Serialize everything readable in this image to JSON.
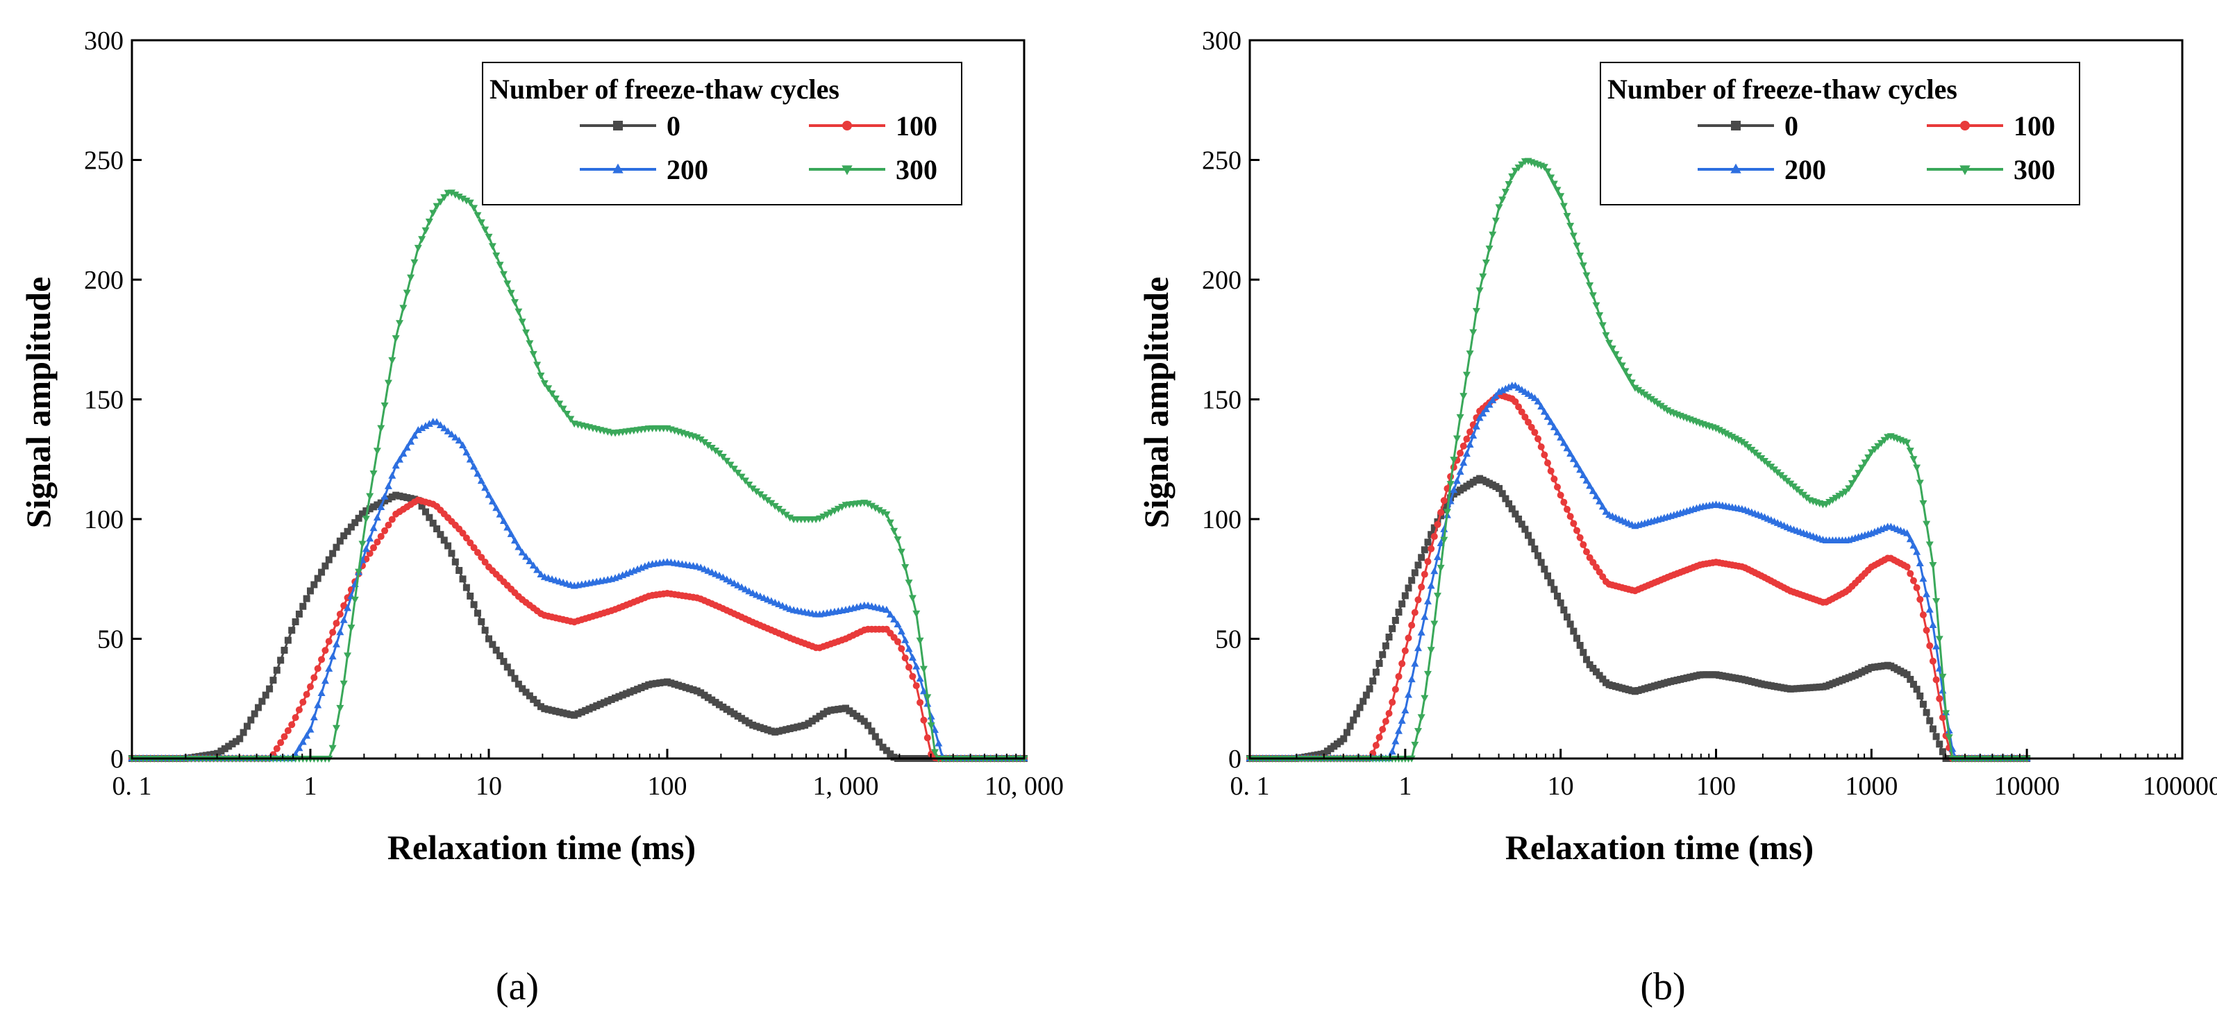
{
  "chart_data": [
    {
      "panel_label": "(a)",
      "type": "line",
      "xscale": "log",
      "xlim": [
        0.1,
        10000
      ],
      "ylim": [
        0,
        300
      ],
      "xticks": [
        0.1,
        1,
        10,
        100,
        1000,
        10000
      ],
      "xtick_labels": [
        "0. 1",
        "1",
        "10",
        "100",
        "1, 000",
        "10, 000"
      ],
      "yticks": [
        0,
        50,
        100,
        150,
        200,
        250,
        300
      ],
      "ytick_labels": [
        "0",
        "50",
        "100",
        "150",
        "200",
        "250",
        "300"
      ],
      "xlabel": "Relaxation time (ms)",
      "ylabel": "Signal amplitude",
      "legend_title": "Number of freeze-thaw cycles",
      "legend_position": "top-right",
      "series": [
        {
          "name": "0",
          "color": "#4a4a4a",
          "marker": "square",
          "points": [
            [
              0.1,
              0
            ],
            [
              0.2,
              0
            ],
            [
              0.3,
              2
            ],
            [
              0.4,
              8
            ],
            [
              0.6,
              30
            ],
            [
              0.8,
              55
            ],
            [
              1,
              70
            ],
            [
              1.5,
              92
            ],
            [
              2,
              103
            ],
            [
              3,
              110
            ],
            [
              4,
              108
            ],
            [
              6,
              88
            ],
            [
              10,
              50
            ],
            [
              15,
              30
            ],
            [
              20,
              21
            ],
            [
              30,
              18
            ],
            [
              50,
              25
            ],
            [
              80,
              31
            ],
            [
              100,
              32
            ],
            [
              150,
              28
            ],
            [
              200,
              22
            ],
            [
              300,
              14
            ],
            [
              400,
              11
            ],
            [
              600,
              14
            ],
            [
              800,
              20
            ],
            [
              1000,
              21
            ],
            [
              1300,
              15
            ],
            [
              1600,
              5
            ],
            [
              1900,
              0
            ],
            [
              10000,
              0
            ]
          ]
        },
        {
          "name": "100",
          "color": "#e83a3a",
          "marker": "circle",
          "points": [
            [
              0.1,
              0
            ],
            [
              0.6,
              0
            ],
            [
              0.8,
              15
            ],
            [
              1,
              30
            ],
            [
              1.5,
              62
            ],
            [
              2,
              82
            ],
            [
              3,
              102
            ],
            [
              4,
              108
            ],
            [
              5,
              106
            ],
            [
              7,
              95
            ],
            [
              10,
              80
            ],
            [
              15,
              67
            ],
            [
              20,
              60
            ],
            [
              30,
              57
            ],
            [
              50,
              62
            ],
            [
              80,
              68
            ],
            [
              100,
              69
            ],
            [
              150,
              67
            ],
            [
              200,
              63
            ],
            [
              300,
              57
            ],
            [
              500,
              50
            ],
            [
              700,
              46
            ],
            [
              1000,
              50
            ],
            [
              1300,
              54
            ],
            [
              1700,
              54
            ],
            [
              2000,
              48
            ],
            [
              2500,
              30
            ],
            [
              3000,
              2
            ],
            [
              3200,
              0
            ],
            [
              10000,
              0
            ]
          ]
        },
        {
          "name": "200",
          "color": "#2d6fe0",
          "marker": "triangle-up",
          "points": [
            [
              0.1,
              0
            ],
            [
              0.8,
              0
            ],
            [
              1,
              12
            ],
            [
              1.5,
              55
            ],
            [
              2,
              85
            ],
            [
              3,
              122
            ],
            [
              4,
              137
            ],
            [
              5,
              141
            ],
            [
              7,
              132
            ],
            [
              10,
              110
            ],
            [
              15,
              87
            ],
            [
              20,
              76
            ],
            [
              30,
              72
            ],
            [
              50,
              75
            ],
            [
              80,
              81
            ],
            [
              100,
              82
            ],
            [
              150,
              80
            ],
            [
              200,
              76
            ],
            [
              300,
              69
            ],
            [
              500,
              62
            ],
            [
              700,
              60
            ],
            [
              1000,
              62
            ],
            [
              1300,
              64
            ],
            [
              1700,
              62
            ],
            [
              2000,
              55
            ],
            [
              2500,
              38
            ],
            [
              3000,
              18
            ],
            [
              3500,
              0
            ],
            [
              10000,
              0
            ]
          ]
        },
        {
          "name": "300",
          "color": "#3aa85a",
          "marker": "triangle-down",
          "points": [
            [
              0.1,
              0
            ],
            [
              1.3,
              0
            ],
            [
              1.5,
              25
            ],
            [
              2,
              95
            ],
            [
              3,
              175
            ],
            [
              4,
              213
            ],
            [
              5,
              230
            ],
            [
              6,
              237
            ],
            [
              8,
              232
            ],
            [
              10,
              218
            ],
            [
              15,
              185
            ],
            [
              20,
              158
            ],
            [
              30,
              140
            ],
            [
              50,
              136
            ],
            [
              80,
              138
            ],
            [
              100,
              138
            ],
            [
              150,
              134
            ],
            [
              200,
              127
            ],
            [
              300,
              113
            ],
            [
              500,
              100
            ],
            [
              700,
              100
            ],
            [
              1000,
              106
            ],
            [
              1300,
              107
            ],
            [
              1700,
              102
            ],
            [
              2000,
              90
            ],
            [
              2500,
              60
            ],
            [
              3000,
              15
            ],
            [
              3200,
              0
            ],
            [
              10000,
              0
            ]
          ]
        }
      ]
    },
    {
      "panel_label": "(b)",
      "type": "line",
      "xscale": "log",
      "xlim": [
        0.1,
        100000
      ],
      "ylim": [
        0,
        300
      ],
      "xticks": [
        0.1,
        1,
        10,
        100,
        1000,
        10000,
        100000
      ],
      "xtick_labels": [
        "0. 1",
        "1",
        "10",
        "100",
        "1000",
        "10000",
        "100000"
      ],
      "yticks": [
        0,
        50,
        100,
        150,
        200,
        250,
        300
      ],
      "ytick_labels": [
        "0",
        "50",
        "100",
        "150",
        "200",
        "250",
        "300"
      ],
      "xlabel": "Relaxation time (ms)",
      "ylabel": "Signal amplitude",
      "legend_title": "Number of freeze-thaw cycles",
      "legend_position": "top-right",
      "series": [
        {
          "name": "0",
          "color": "#4a4a4a",
          "marker": "square",
          "points": [
            [
              0.1,
              0
            ],
            [
              0.2,
              0
            ],
            [
              0.3,
              2
            ],
            [
              0.4,
              8
            ],
            [
              0.6,
              30
            ],
            [
              0.8,
              52
            ],
            [
              1,
              68
            ],
            [
              1.5,
              95
            ],
            [
              2,
              110
            ],
            [
              3,
              117
            ],
            [
              4,
              113
            ],
            [
              6,
              95
            ],
            [
              10,
              65
            ],
            [
              15,
              40
            ],
            [
              20,
              31
            ],
            [
              30,
              28
            ],
            [
              50,
              32
            ],
            [
              80,
              35
            ],
            [
              100,
              35
            ],
            [
              150,
              33
            ],
            [
              200,
              31
            ],
            [
              300,
              29
            ],
            [
              500,
              30
            ],
            [
              800,
              35
            ],
            [
              1000,
              38
            ],
            [
              1300,
              39
            ],
            [
              1700,
              35
            ],
            [
              2000,
              28
            ],
            [
              2500,
              12
            ],
            [
              3000,
              0
            ],
            [
              10000,
              0
            ]
          ]
        },
        {
          "name": "100",
          "color": "#e83a3a",
          "marker": "circle",
          "points": [
            [
              0.1,
              0
            ],
            [
              0.6,
              0
            ],
            [
              0.8,
              20
            ],
            [
              1,
              45
            ],
            [
              1.5,
              90
            ],
            [
              2,
              120
            ],
            [
              3,
              145
            ],
            [
              4,
              152
            ],
            [
              5,
              150
            ],
            [
              7,
              135
            ],
            [
              10,
              110
            ],
            [
              15,
              85
            ],
            [
              20,
              73
            ],
            [
              30,
              70
            ],
            [
              50,
              76
            ],
            [
              80,
              81
            ],
            [
              100,
              82
            ],
            [
              150,
              80
            ],
            [
              200,
              76
            ],
            [
              300,
              70
            ],
            [
              500,
              65
            ],
            [
              700,
              70
            ],
            [
              1000,
              80
            ],
            [
              1300,
              84
            ],
            [
              1700,
              80
            ],
            [
              2000,
              70
            ],
            [
              2500,
              40
            ],
            [
              3000,
              10
            ],
            [
              3300,
              0
            ],
            [
              10000,
              0
            ]
          ]
        },
        {
          "name": "200",
          "color": "#2d6fe0",
          "marker": "triangle-up",
          "points": [
            [
              0.1,
              0
            ],
            [
              0.8,
              0
            ],
            [
              1,
              20
            ],
            [
              1.5,
              75
            ],
            [
              2,
              110
            ],
            [
              3,
              142
            ],
            [
              4,
              153
            ],
            [
              5,
              156
            ],
            [
              7,
              150
            ],
            [
              10,
              134
            ],
            [
              15,
              115
            ],
            [
              20,
              102
            ],
            [
              30,
              97
            ],
            [
              50,
              101
            ],
            [
              80,
              105
            ],
            [
              100,
              106
            ],
            [
              150,
              104
            ],
            [
              200,
              101
            ],
            [
              300,
              96
            ],
            [
              500,
              91
            ],
            [
              700,
              91
            ],
            [
              1000,
              94
            ],
            [
              1300,
              97
            ],
            [
              1700,
              94
            ],
            [
              2000,
              85
            ],
            [
              2500,
              55
            ],
            [
              3000,
              20
            ],
            [
              3400,
              0
            ],
            [
              10000,
              0
            ]
          ]
        },
        {
          "name": "300",
          "color": "#3aa85a",
          "marker": "triangle-down",
          "points": [
            [
              0.1,
              0
            ],
            [
              1.1,
              0
            ],
            [
              1.3,
              20
            ],
            [
              1.5,
              50
            ],
            [
              2,
              120
            ],
            [
              3,
              195
            ],
            [
              4,
              230
            ],
            [
              5,
              245
            ],
            [
              6,
              250
            ],
            [
              8,
              247
            ],
            [
              10,
              235
            ],
            [
              15,
              200
            ],
            [
              20,
              175
            ],
            [
              30,
              155
            ],
            [
              50,
              145
            ],
            [
              80,
              140
            ],
            [
              100,
              138
            ],
            [
              150,
              132
            ],
            [
              200,
              125
            ],
            [
              300,
              115
            ],
            [
              400,
              108
            ],
            [
              500,
              106
            ],
            [
              700,
              112
            ],
            [
              1000,
              128
            ],
            [
              1300,
              135
            ],
            [
              1700,
              132
            ],
            [
              2000,
              120
            ],
            [
              2500,
              80
            ],
            [
              3000,
              20
            ],
            [
              3300,
              0
            ],
            [
              10000,
              0
            ]
          ]
        }
      ]
    }
  ]
}
